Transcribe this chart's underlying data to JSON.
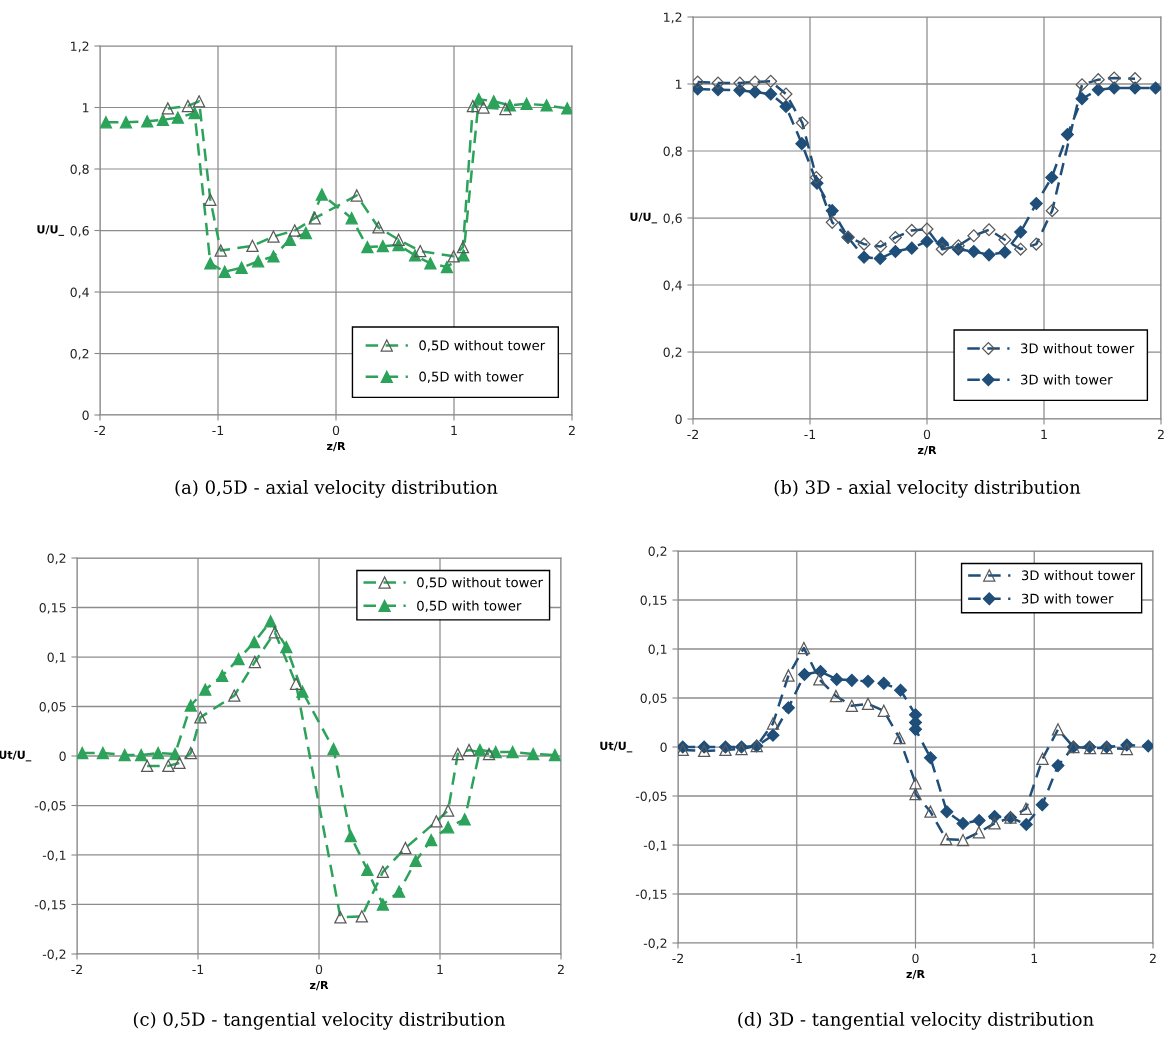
{
  "chart_data": [
    {
      "type": "line",
      "xlabel": "z/R",
      "ylabel": "U/U_",
      "annotations": [
        "(a) 0,5D - axial velocity distribution"
      ],
      "xlim": [
        -2,
        2
      ],
      "xticks": [
        -2,
        -1,
        0,
        1,
        2
      ],
      "ylim": [
        0,
        1.2
      ],
      "yticks": [
        0,
        {
          "value": 0.2,
          "label": "0,2"
        },
        {
          "value": 0.4,
          "label": "0,4"
        },
        {
          "value": 0.6,
          "label": "0,6"
        },
        {
          "value": 0.8,
          "label": "0,8"
        },
        1,
        {
          "value": 1.2,
          "label": "1,2"
        }
      ],
      "grid": true,
      "legend": "bottom right",
      "marker": "triangle",
      "line_style": "dashed",
      "series": [
        {
          "name": "0,5D without tower",
          "color": "#2ca25a",
          "x": [
            -1.425,
            -1.255,
            -1.16,
            -1.065,
            -0.977,
            -0.708,
            -0.53,
            -0.35,
            -0.18,
            0.176,
            0.36,
            0.53,
            0.714,
            0.997,
            1.076,
            1.16,
            1.25,
            1.436
          ],
          "values": [
            0.997,
            1.005,
            1.02,
            0.7,
            0.535,
            0.55,
            0.58,
            0.6,
            0.64,
            0.714,
            0.61,
            0.57,
            0.533,
            0.516,
            0.546,
            1.005,
            1.0,
            0.995
          ]
        },
        {
          "name": "0,5D with tower",
          "color": "#2ca25a",
          "x": [
            -1.95,
            -1.78,
            -1.6,
            -1.467,
            -1.34,
            -1.198,
            -1.065,
            -0.943,
            -0.8,
            -0.66,
            -0.53,
            -0.39,
            -0.255,
            -0.12,
            0.133,
            0.266,
            0.397,
            0.53,
            0.67,
            0.8,
            0.94,
            1.08,
            1.21,
            1.337,
            1.473,
            1.615,
            1.785,
            1.96
          ],
          "values": [
            0.952,
            0.952,
            0.955,
            0.96,
            0.967,
            0.982,
            0.493,
            0.466,
            0.479,
            0.5,
            0.516,
            0.57,
            0.592,
            0.717,
            0.64,
            0.546,
            0.549,
            0.553,
            0.519,
            0.493,
            0.481,
            0.519,
            1.027,
            1.02,
            1.007,
            1.012,
            1.007,
            0.997
          ]
        }
      ]
    },
    {
      "type": "line",
      "xlabel": "z/R",
      "ylabel": "U/U_",
      "annotations": [
        "(b) 3D - axial velocity distribution"
      ],
      "xlim": [
        -2,
        2
      ],
      "xticks": [
        -2,
        -1,
        0,
        1,
        2
      ],
      "ylim": [
        0,
        1.2
      ],
      "yticks": [
        0,
        {
          "value": 0.2,
          "label": "0,2"
        },
        {
          "value": 0.4,
          "label": "0,4"
        },
        {
          "value": 0.6,
          "label": "0,6"
        },
        {
          "value": 0.8,
          "label": "0,8"
        },
        1,
        {
          "value": 1.2,
          "label": "1,2"
        }
      ],
      "grid": true,
      "legend": "bottom right",
      "marker": "diamond",
      "line_style": "dashed",
      "series": [
        {
          "name": "3D without tower",
          "color": "#1f4e79",
          "x": [
            -1.96,
            -1.786,
            -1.6,
            -1.47,
            -1.336,
            -1.205,
            -1.066,
            -0.946,
            -0.81,
            -0.675,
            -0.538,
            -0.396,
            -0.27,
            -0.13,
            0,
            0.13,
            0.268,
            0.4,
            0.53,
            0.666,
            0.8,
            0.934,
            1.07,
            1.325,
            1.464,
            1.6,
            1.778
          ],
          "values": [
            1.006,
            1.003,
            1.003,
            1.006,
            1.008,
            0.97,
            0.884,
            0.721,
            0.587,
            0.543,
            0.522,
            0.515,
            0.542,
            0.563,
            0.567,
            0.507,
            0.517,
            0.547,
            0.565,
            0.535,
            0.507,
            0.522,
            0.622,
            0.998,
            1.013,
            1.018,
            1.016
          ]
        },
        {
          "name": "3D with tower",
          "color": "#1f4e79",
          "x": [
            -1.96,
            -1.786,
            -1.6,
            -1.47,
            -1.336,
            -1.205,
            -1.07,
            -0.94,
            -0.81,
            -0.675,
            -0.538,
            -0.4,
            -0.27,
            -0.13,
            0,
            0.13,
            0.268,
            0.4,
            0.53,
            0.666,
            0.8,
            0.934,
            1.066,
            1.2,
            1.325,
            1.464,
            1.6,
            1.778,
            1.954
          ],
          "values": [
            0.985,
            0.983,
            0.981,
            0.976,
            0.97,
            0.933,
            0.822,
            0.704,
            0.622,
            0.542,
            0.483,
            0.479,
            0.5,
            0.51,
            0.53,
            0.525,
            0.507,
            0.5,
            0.49,
            0.498,
            0.558,
            0.643,
            0.721,
            0.849,
            0.956,
            0.983,
            0.988,
            0.988,
            0.988
          ]
        }
      ]
    },
    {
      "type": "line",
      "xlabel": "z/R",
      "ylabel": "Ut/U_",
      "annotations": [
        "(c) 0,5D - tangential velocity distribution"
      ],
      "xlim": [
        -2,
        2
      ],
      "xticks": [
        -2,
        -1,
        0,
        1,
        2
      ],
      "ylim": [
        -0.2,
        0.2
      ],
      "yticks": [
        {
          "value": -0.2,
          "label": "-0,2"
        },
        {
          "value": -0.15,
          "label": "-0,15"
        },
        {
          "value": -0.1,
          "label": "-0,1"
        },
        {
          "value": -0.05,
          "label": "-0,05"
        },
        0,
        {
          "value": 0.05,
          "label": "0,05"
        },
        {
          "value": 0.1,
          "label": "0,1"
        },
        {
          "value": 0.15,
          "label": "0,15"
        },
        {
          "value": 0.2,
          "label": "0,2"
        }
      ],
      "grid": true,
      "legend": "top right",
      "marker": "triangle",
      "line_style": "dashed",
      "series": [
        {
          "name": "0,5D without tower",
          "color": "#2ca25a",
          "x": [
            -1.42,
            -1.245,
            -1.153,
            -1.06,
            -0.98,
            -0.7,
            -0.53,
            -0.365,
            -0.19,
            0.177,
            0.354,
            0.528,
            0.714,
            0.97,
            1.067,
            1.147,
            1.24,
            1.405
          ],
          "values": [
            -0.01,
            -0.01,
            -0.007,
            0.003,
            0.039,
            0.061,
            0.095,
            0.125,
            0.073,
            -0.163,
            -0.162,
            -0.117,
            -0.093,
            -0.066,
            -0.055,
            0.002,
            0.006,
            0.002
          ]
        },
        {
          "name": "0,5D with tower",
          "color": "#2ca25a",
          "x": [
            -1.957,
            -1.786,
            -1.606,
            -1.47,
            -1.33,
            -1.19,
            -1.06,
            -0.94,
            -0.8,
            -0.665,
            -0.535,
            -0.4,
            -0.27,
            -0.137,
            0.12,
            0.262,
            0.4,
            0.528,
            0.662,
            0.799,
            0.927,
            1.067,
            1.204,
            1.33,
            1.46,
            1.6,
            1.77,
            1.95
          ],
          "values": [
            0.003,
            0.003,
            0.001,
            0.001,
            0.003,
            0.002,
            0.051,
            0.067,
            0.081,
            0.098,
            0.115,
            0.136,
            0.11,
            0.065,
            0.007,
            -0.081,
            -0.115,
            -0.15,
            -0.137,
            -0.106,
            -0.085,
            -0.072,
            -0.064,
            0.006,
            0.004,
            0.004,
            0.002,
            0.001
          ]
        }
      ]
    },
    {
      "type": "line",
      "xlabel": "z/R",
      "ylabel": "Ut/U_",
      "annotations": [
        "(d) 3D - tangential velocity distribution"
      ],
      "xlim": [
        -2,
        2
      ],
      "xticks": [
        -2,
        -1,
        0,
        1,
        2
      ],
      "ylim": [
        -0.2,
        0.2
      ],
      "yticks": [
        {
          "value": -0.2,
          "label": "-0,2"
        },
        {
          "value": -0.15,
          "label": "-0,15"
        },
        {
          "value": -0.1,
          "label": "-0,1"
        },
        {
          "value": -0.05,
          "label": "-0,05"
        },
        0,
        {
          "value": 0.05,
          "label": "0,05"
        },
        {
          "value": 0.1,
          "label": "0,1"
        },
        {
          "value": 0.15,
          "label": "0,15"
        },
        {
          "value": 0.2,
          "label": "0,2"
        }
      ],
      "grid": true,
      "legend": "top right",
      "line_style": "dashed",
      "series": [
        {
          "name": "3D without tower",
          "color": "#1f4e79",
          "marker": "triangle",
          "x": [
            -1.96,
            -1.78,
            -1.6,
            -1.465,
            -1.337,
            -1.2,
            -1.07,
            -0.94,
            -0.81,
            -0.67,
            -0.536,
            -0.4,
            -0.267,
            -0.135,
            0,
            0,
            0.126,
            0.258,
            0.4,
            0.534,
            0.666,
            0.8,
            0.93,
            1.07,
            1.2,
            1.33,
            1.47,
            1.61,
            1.78
          ],
          "values": [
            -0.003,
            -0.004,
            -0.003,
            -0.002,
            0.001,
            0.024,
            0.073,
            0.101,
            0.069,
            0.052,
            0.042,
            0.044,
            0.037,
            0.009,
            -0.037,
            -0.048,
            -0.066,
            -0.094,
            -0.095,
            -0.087,
            -0.078,
            -0.072,
            -0.063,
            -0.012,
            0.018,
            0.0,
            -0.001,
            -0.001,
            -0.002
          ]
        },
        {
          "name": "3D with tower",
          "color": "#1f4e79",
          "marker": "diamond",
          "x": [
            -1.96,
            -1.78,
            -1.6,
            -1.465,
            -1.337,
            -1.2,
            -1.07,
            -0.935,
            -0.8,
            -0.663,
            -0.536,
            -0.4,
            -0.267,
            -0.126,
            0,
            0,
            0,
            0.126,
            0.264,
            0.4,
            0.536,
            0.666,
            0.8,
            0.933,
            1.067,
            1.2,
            1.33,
            1.466,
            1.61,
            1.78,
            1.96
          ],
          "values": [
            0.0,
            0.0,
            0.0,
            0.0,
            0.001,
            0.012,
            0.04,
            0.074,
            0.077,
            0.069,
            0.068,
            0.067,
            0.065,
            0.058,
            0.033,
            0.025,
            0.018,
            -0.011,
            -0.066,
            -0.078,
            -0.075,
            -0.071,
            -0.072,
            -0.079,
            -0.059,
            -0.019,
            0.0,
            0.0,
            0.0,
            0.002,
            0.001
          ]
        }
      ]
    }
  ]
}
